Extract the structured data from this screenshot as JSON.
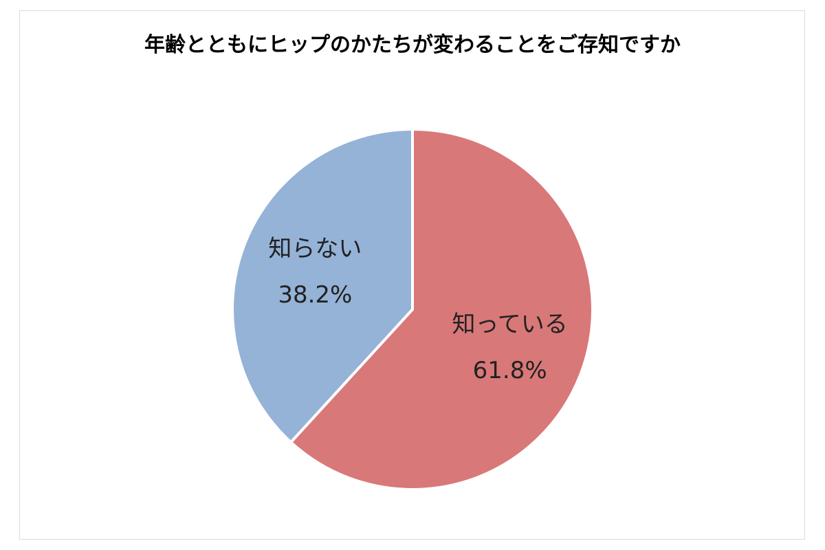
{
  "chart_data": {
    "type": "pie",
    "title": "年齢とともにヒップのかたちが変わることをご存知ですか",
    "slices": [
      {
        "label": "知っている",
        "value": 61.8,
        "value_label": "61.8%",
        "color": "#d97878"
      },
      {
        "label": "知らない",
        "value": 38.2,
        "value_label": "38.2%",
        "color": "#95b3d7"
      }
    ],
    "start": "12 o'clock",
    "direction": "clockwise",
    "legend": "none",
    "slice_border_color": "#ffffff"
  }
}
